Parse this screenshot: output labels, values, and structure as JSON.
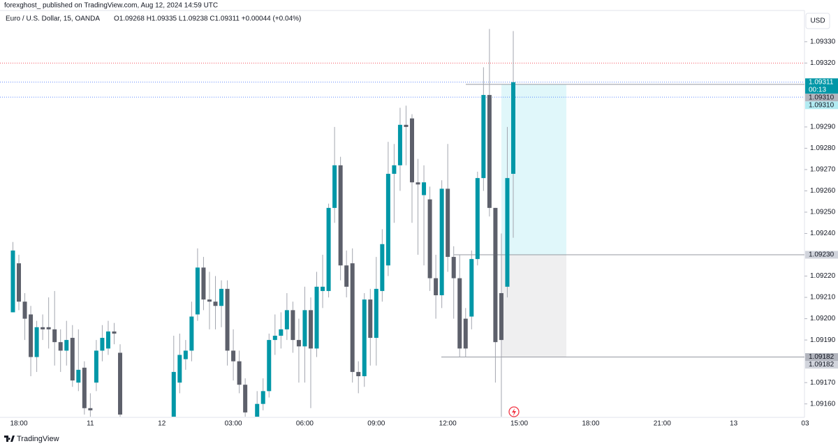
{
  "header": {
    "publisher": "forexghost_ published on TradingView.com, Aug 12, 2024 14:59 UTC",
    "symbol": "Euro / U.S. Dollar, 15, OANDA",
    "ohlc": "O1.09268  H1.09335  L1.09238  C1.09311  +0.00044 (+0.04%)"
  },
  "footer": {
    "brand": "TradingView"
  },
  "chart_data": {
    "type": "candlestick",
    "currency": "USD",
    "categories": [
      null,
      "18:00",
      null,
      null,
      null,
      null,
      null,
      null,
      null,
      null,
      null,
      null,
      null,
      "11",
      null,
      null,
      null,
      null,
      null,
      null,
      null,
      null,
      null,
      null,
      null,
      "12",
      null,
      null,
      null,
      null,
      null,
      null,
      null,
      null,
      null,
      null,
      null,
      "03:00",
      null,
      null,
      null,
      null,
      null,
      null,
      null,
      null,
      null,
      null,
      null,
      "06:00",
      null,
      null,
      null,
      null,
      null,
      null,
      null,
      null,
      null,
      null,
      null,
      "09:00",
      null,
      null,
      null,
      null,
      null,
      null,
      null,
      null,
      null,
      null,
      null,
      "12:00",
      null,
      null,
      null,
      null,
      null,
      null,
      null,
      null,
      null,
      null,
      null
    ],
    "future_labels": [
      "15:00",
      "18:00",
      "21:00",
      "13",
      "03"
    ],
    "open": [
      1.09203,
      1.09226,
      1.09208,
      1.09202,
      1.09182,
      1.09196,
      1.09196,
      1.09195,
      1.09189,
      1.09185,
      1.09191,
      1.0917,
      1.09177,
      1.09158,
      1.0917,
      1.09185,
      1.09186,
      1.09194,
      1.09184,
      null,
      null,
      null,
      null,
      null,
      null,
      null,
      null,
      1.09152,
      1.0917,
      1.09181,
      1.09185,
      1.09202,
      1.09224,
      1.09209,
      1.09208,
      1.09206,
      1.09214,
      1.09185,
      1.0918,
      1.09169,
      null,
      1.09154,
      1.0916,
      1.09166,
      1.0919,
      1.09192,
      1.09195,
      1.09204,
      1.0919,
      1.09187,
      1.09204,
      1.09186,
      1.09213,
      1.09213,
      1.09252,
      1.09272,
      1.09225,
      1.09226,
      1.09175,
      1.09173,
      1.09209,
      1.09191,
      1.09213,
      1.09225,
      1.09268,
      1.09272,
      1.09291,
      1.09294,
      1.09264,
      1.09258,
      1.09256,
      1.09219,
      1.09211,
      1.09261,
      1.09229,
      1.09219,
      1.092,
      1.09201,
      1.09228,
      1.09266,
      1.09305,
      1.09252,
      1.09212,
      1.09215,
      1.09268
    ],
    "high": [
      1.09236,
      1.0923,
      1.09212,
      1.09206,
      1.09199,
      1.09202,
      1.0921,
      1.09213,
      1.09195,
      1.09199,
      1.09197,
      1.09195,
      1.0918,
      1.09165,
      1.0919,
      1.09197,
      1.09199,
      1.09198,
      1.09188,
      null,
      null,
      null,
      null,
      null,
      null,
      null,
      null,
      1.09192,
      1.09193,
      1.0919,
      1.09208,
      1.09233,
      1.09229,
      1.09222,
      1.0922,
      1.09218,
      1.09218,
      1.09195,
      1.09185,
      1.09172,
      null,
      1.09166,
      1.09172,
      1.09193,
      1.09202,
      1.09203,
      1.09212,
      1.09208,
      1.092,
      1.09215,
      1.0921,
      1.09222,
      1.0923,
      1.09254,
      1.0929,
      1.09276,
      1.09232,
      1.09233,
      1.0918,
      1.09212,
      1.09214,
      1.09229,
      1.09242,
      1.09283,
      1.09282,
      1.09299,
      1.093,
      1.09296,
      1.09275,
      1.09272,
      1.09262,
      1.0923,
      1.09265,
      1.09282,
      1.09234,
      1.0923,
      1.09205,
      1.09232,
      1.09269,
      1.09318,
      1.09336,
      1.09252,
      1.0924,
      1.0929,
      1.09335
    ],
    "low": [
      1.09203,
      1.09204,
      1.0919,
      1.09173,
      1.09175,
      1.0919,
      1.09186,
      1.09178,
      1.09175,
      1.09178,
      1.09168,
      1.09166,
      1.09155,
      1.09154,
      1.09166,
      1.0918,
      1.09183,
      1.09188,
      1.09154,
      null,
      null,
      null,
      null,
      null,
      null,
      null,
      null,
      1.0915,
      1.09165,
      1.09176,
      1.0918,
      1.09199,
      1.09204,
      1.09195,
      1.09195,
      1.09196,
      1.09178,
      1.09171,
      1.09165,
      1.09154,
      null,
      1.09154,
      1.09157,
      1.09163,
      1.09183,
      1.09186,
      1.0919,
      1.09184,
      1.0917,
      1.0917,
      1.09158,
      1.09182,
      1.09205,
      1.0921,
      1.09245,
      1.09218,
      1.0921,
      1.0917,
      1.09165,
      1.09168,
      1.09178,
      1.09178,
      1.09208,
      1.0922,
      1.09245,
      1.0926,
      1.09272,
      1.09245,
      1.0923,
      1.09225,
      1.09213,
      1.092,
      1.09205,
      1.09222,
      1.092,
      1.09182,
      1.09182,
      1.09195,
      1.09225,
      1.0926,
      1.09248,
      1.0917,
      1.09154,
      1.0921,
      1.09238
    ],
    "close": [
      1.09232,
      1.09208,
      1.092,
      1.09182,
      1.09196,
      1.09195,
      1.09195,
      1.09189,
      1.09185,
      1.0919,
      1.09171,
      1.09176,
      1.09158,
      1.09157,
      1.09185,
      1.09191,
      1.09194,
      1.09193,
      1.09155,
      null,
      null,
      null,
      null,
      null,
      null,
      null,
      null,
      1.09175,
      1.09183,
      1.09185,
      1.09201,
      1.09224,
      1.09209,
      1.09208,
      1.09206,
      1.09214,
      1.09185,
      1.0918,
      1.09169,
      1.09156,
      null,
      1.0916,
      1.09166,
      1.0919,
      1.09192,
      1.09195,
      1.09204,
      1.0919,
      1.09187,
      1.09204,
      1.09186,
      1.09215,
      1.09215,
      1.09252,
      1.09272,
      1.09225,
      1.09215,
      1.09175,
      1.09173,
      1.09209,
      1.09191,
      1.09214,
      1.09235,
      1.09268,
      1.09272,
      1.09291,
      1.0929,
      1.09264,
      1.09263,
      1.09264,
      1.09219,
      1.09211,
      1.09261,
      1.09229,
      1.09219,
      1.09186,
      1.09186,
      1.09228,
      1.09266,
      1.09305,
      1.09252,
      1.09189,
      1.0919,
      1.09266,
      1.09311
    ],
    "up_color": "#0097a7",
    "down_color": "#5d606b",
    "wick_color": "#a3a6af",
    "ylim": [
      1.09154,
      1.09345
    ],
    "yticks": [
      {
        "value": 1.0916,
        "label": "1.09160"
      },
      {
        "value": 1.0917,
        "label": "1.09170"
      },
      {
        "value": 1.0919,
        "label": "1.09190"
      },
      {
        "value": 1.092,
        "label": "1.09200"
      },
      {
        "value": 1.0921,
        "label": "1.09210"
      },
      {
        "value": 1.0922,
        "label": "1.09220"
      },
      {
        "value": 1.0924,
        "label": "1.09240"
      },
      {
        "value": 1.0925,
        "label": "1.09250"
      },
      {
        "value": 1.0926,
        "label": "1.09260"
      },
      {
        "value": 1.0927,
        "label": "1.09270"
      },
      {
        "value": 1.0928,
        "label": "1.09280"
      },
      {
        "value": 1.0929,
        "label": "1.09290"
      },
      {
        "value": 1.0932,
        "label": "1.09320"
      },
      {
        "value": 1.0933,
        "label": "1.09330"
      }
    ],
    "grid": false,
    "dotted_lines": [
      {
        "value": 1.0932,
        "color": "#f23645"
      },
      {
        "value": 1.09311,
        "color": "#2962ff"
      },
      {
        "value": 1.09304,
        "color": "#2962ff"
      }
    ],
    "last_price": {
      "value": 1.09311,
      "label": "1.09311",
      "countdown": "00:13"
    },
    "hlines": [
      {
        "value": 1.0931,
        "label": "1.09310"
      },
      {
        "value": 1.0923,
        "label": "1.09230"
      },
      {
        "value": 1.09182,
        "label": "1.09182"
      }
    ],
    "position": {
      "target": {
        "value": 1.0931,
        "label": "1.09310"
      },
      "entry": {
        "value": 1.0923
      },
      "stop": {
        "value": 1.09182,
        "label": "1.09182"
      }
    }
  }
}
